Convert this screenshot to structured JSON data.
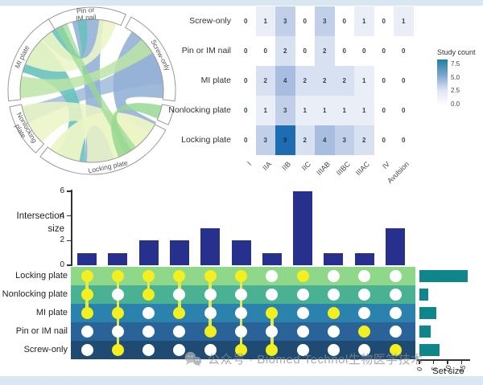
{
  "chord": {
    "segments": [
      {
        "label": "Pin or IM nail",
        "label_lines": [
          "Pin or",
          "IM nail"
        ],
        "start": -33,
        "end": 24
      },
      {
        "label": "Screw-only",
        "label_lines": [
          "Screw-only"
        ],
        "start": 28,
        "end": 97
      },
      {
        "label": "",
        "label_lines": [],
        "start": 101,
        "end": 114
      },
      {
        "label": "Locking plate",
        "label_lines": [
          "Locking plate"
        ],
        "start": 118,
        "end": 218
      },
      {
        "label": "Nonlocking plate",
        "label_lines": [
          "Nonlocking",
          "plate"
        ],
        "start": 222,
        "end": 259
      },
      {
        "label": "MI plate",
        "label_lines": [
          "MI plate"
        ],
        "start": 263,
        "end": 329
      }
    ],
    "ribbons": [
      {
        "from": [
          -16,
          10
        ],
        "to": [
          162,
          186
        ],
        "color": "blue",
        "opacity": 0.9
      },
      {
        "from": [
          34,
          96
        ],
        "to": [
          116,
          140
        ],
        "color": "blue",
        "opacity": 0.9
      },
      {
        "from": [
          58,
          84
        ],
        "to": [
          243,
          257
        ],
        "color": "blue",
        "opacity": 0.75
      },
      {
        "from": [
          285,
          315
        ],
        "to": [
          186,
          208
        ],
        "color": "teal",
        "opacity": 0.9
      },
      {
        "from": [
          316,
          336
        ],
        "to": [
          -12,
          -4
        ],
        "color": "teal",
        "opacity": 0.9
      },
      {
        "from": [
          118,
          162
        ],
        "to": [
          190,
          216
        ],
        "color": "lime",
        "opacity": 0.95
      },
      {
        "from": [
          126,
          184
        ],
        "to": [
          224,
          258
        ],
        "color": "lime",
        "opacity": 0.85
      },
      {
        "from": [
          292,
          326
        ],
        "to": [
          6,
          20
        ],
        "color": "lime",
        "opacity": 0.9
      },
      {
        "from": [
          264,
          282
        ],
        "to": [
          44,
          58
        ],
        "color": "lightgreen",
        "opacity": 0.85
      },
      {
        "from": [
          102,
          113
        ],
        "to": [
          146,
          158
        ],
        "color": "green",
        "opacity": 0.85
      },
      {
        "from": [
          330,
          340
        ],
        "to": [
          142,
          152
        ],
        "color": "green",
        "opacity": 0.7
      }
    ]
  },
  "chart_data": [
    {
      "type": "heatmap",
      "rows": [
        "Screw-only",
        "Pin or IM nail",
        "MI plate",
        "Nonlocking plate",
        "Locking plate"
      ],
      "columns": [
        "I",
        "IIA",
        "IIB",
        "IIC",
        "IIIAB",
        "IIIBC",
        "IIIAC",
        "IV",
        "Avulsion"
      ],
      "values": [
        [
          0,
          1,
          3,
          0,
          3,
          0,
          1,
          0,
          1
        ],
        [
          0,
          0,
          2,
          0,
          2,
          0,
          0,
          0,
          0
        ],
        [
          0,
          2,
          4,
          2,
          2,
          2,
          1,
          0,
          0
        ],
        [
          0,
          1,
          3,
          1,
          1,
          1,
          1,
          0,
          0
        ],
        [
          0,
          3,
          9,
          2,
          4,
          3,
          2,
          0,
          0
        ]
      ],
      "legend": {
        "title": "Study count",
        "ticks": [
          "7.5",
          "5.0",
          "2.5",
          "0.0"
        ]
      }
    },
    {
      "type": "upset",
      "ylabel": "Intersection size",
      "yticks": [
        0,
        2,
        4,
        6
      ],
      "ylim": [
        0,
        6
      ],
      "sets": [
        "Locking plate",
        "Nonlocking plate",
        "MI plate",
        "Pin or IM nail",
        "Screw-only"
      ],
      "intersections": [
        {
          "size": 1,
          "matrix": [
            1,
            1,
            1,
            0,
            0
          ]
        },
        {
          "size": 1,
          "matrix": [
            1,
            0,
            1,
            0,
            1
          ]
        },
        {
          "size": 2,
          "matrix": [
            1,
            1,
            0,
            0,
            0
          ]
        },
        {
          "size": 2,
          "matrix": [
            1,
            0,
            1,
            0,
            0
          ]
        },
        {
          "size": 3,
          "matrix": [
            1,
            0,
            0,
            1,
            0
          ]
        },
        {
          "size": 2,
          "matrix": [
            1,
            0,
            0,
            0,
            1
          ]
        },
        {
          "size": 1,
          "matrix": [
            0,
            0,
            1,
            0,
            1
          ]
        },
        {
          "size": 6,
          "matrix": [
            1,
            0,
            0,
            0,
            0
          ]
        },
        {
          "size": 1,
          "matrix": [
            0,
            0,
            1,
            0,
            0
          ]
        },
        {
          "size": 1,
          "matrix": [
            0,
            0,
            0,
            1,
            0
          ]
        },
        {
          "size": 3,
          "matrix": [
            0,
            0,
            0,
            0,
            1
          ]
        }
      ],
      "set_sizes": {
        "Locking plate": 17,
        "Nonlocking plate": 3,
        "MI plate": 6,
        "Pin or IM nail": 4,
        "Screw-only": 7
      },
      "set_size_axis": {
        "label": "Set size",
        "ticks": [
          0,
          5,
          10,
          15
        ]
      }
    }
  ],
  "watermark": {
    "text": "公众号 · Biomed Technol生物医学技术"
  },
  "colors": {
    "upset_bar": "#27308c",
    "setsize_bar": "#0e868a",
    "dot_on": "#f4ef1f",
    "dot_off": "#ffffff",
    "connector": "#dcec52",
    "row_bands": [
      "#8fd889",
      "#4bb193",
      "#2b83ad",
      "#2a6397",
      "#1f4a71"
    ],
    "heatmap_values": {
      "0": "#ffffff",
      "1": "#e9eef7",
      "2": "#d8e1f1",
      "3": "#c1cfe9",
      "4": "#a8bde0",
      "9": "#1e6cb1"
    },
    "legend_gradient": [
      "#1f7ea1",
      "#7ba6cf",
      "#dfe6f3",
      "#ffffff"
    ],
    "ribbon": {
      "blue": "#93b1d6",
      "teal": "#68c2bd",
      "green": "#97d893",
      "lime": "#ebf5c6",
      "lightgreen": "#bce4a6"
    },
    "frame": "#d9e7f4",
    "watermark": "#868d95"
  }
}
